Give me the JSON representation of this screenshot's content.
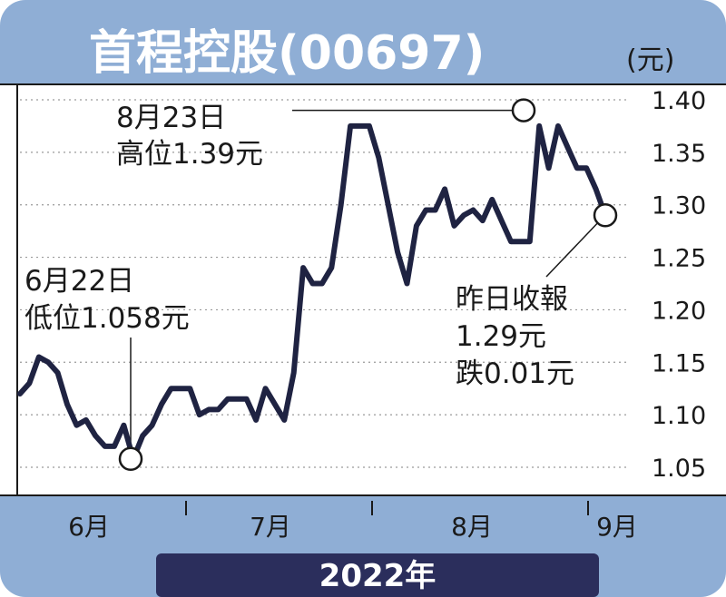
{
  "chart_data": {
    "type": "line",
    "title": "首程控股(00697)",
    "unit": "(元)",
    "year_label": "2022年",
    "months": [
      "6月",
      "7月",
      "8月",
      "9月"
    ],
    "yticks": [
      "1.05",
      "1.10",
      "1.15",
      "1.20",
      "1.25",
      "1.30",
      "1.35",
      "1.40"
    ],
    "ylim": [
      1.05,
      1.4
    ],
    "grid": true,
    "series": [
      {
        "values": [
          1.12,
          1.13,
          1.155,
          1.15,
          1.14,
          1.11,
          1.09,
          1.095,
          1.08,
          1.07,
          1.07,
          1.09,
          1.058,
          1.08,
          1.09,
          1.11,
          1.125,
          1.125,
          1.125,
          1.1,
          1.105,
          1.105,
          1.115,
          1.115,
          1.115,
          1.095,
          1.125,
          1.11,
          1.095,
          1.14,
          1.24,
          1.225,
          1.225,
          1.24,
          1.3,
          1.375,
          1.375,
          1.375,
          1.345,
          1.3,
          1.255,
          1.225,
          1.28,
          1.295,
          1.295,
          1.315,
          1.28,
          1.29,
          1.295,
          1.285,
          1.305,
          1.285,
          1.265,
          1.265,
          1.265,
          1.375,
          1.335,
          1.375,
          1.355,
          1.335,
          1.335,
          1.315,
          1.29
        ],
        "color": "#1f2342"
      }
    ],
    "annotations": {
      "high": {
        "line1": "8月23日",
        "line2": "高位1.39元",
        "value": 1.39
      },
      "low": {
        "line1": "6月22日",
        "line2": "低位1.058元",
        "value": 1.058
      },
      "close": {
        "line1": "昨日收報",
        "line2": "1.29元",
        "line3": "跌0.01元",
        "value": 1.29
      }
    }
  },
  "colors": {
    "background": "#8faed5",
    "panel": "#ffffff",
    "line": "#1f2342",
    "year_bar": "#2b2e5c",
    "grid": "#9a9a9a"
  }
}
